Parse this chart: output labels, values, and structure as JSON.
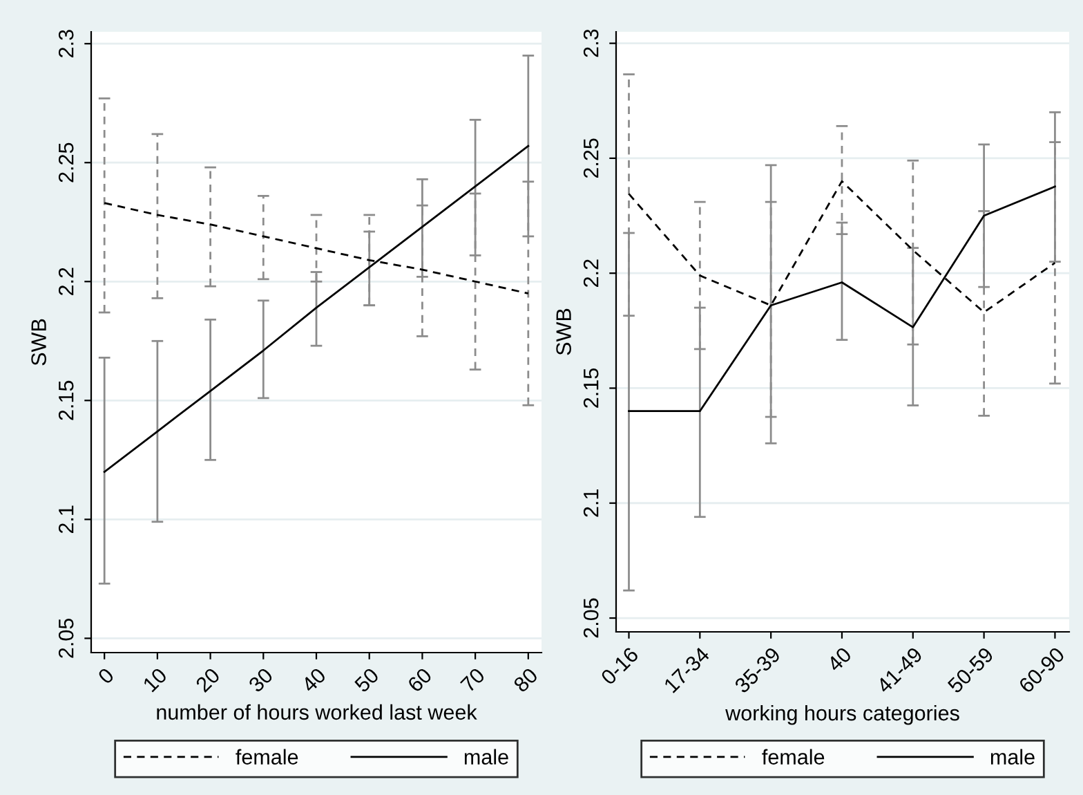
{
  "chart_data": [
    {
      "type": "line",
      "x": [
        0,
        10,
        20,
        30,
        40,
        50,
        60,
        70,
        80
      ],
      "xlabel": "number of hours worked last week",
      "ylabel": "SWB",
      "xlim": [
        -2.5,
        82.5
      ],
      "ylim": [
        2.044,
        2.305
      ],
      "xticks": [
        0,
        10,
        20,
        30,
        40,
        50,
        60,
        70,
        80
      ],
      "yticks": [
        2.05,
        2.1,
        2.15,
        2.2,
        2.25,
        2.3
      ],
      "grid": "y",
      "legend": "bottom",
      "marker": "none",
      "series": [
        {
          "name": "female",
          "color": "#000000",
          "line_style": "dashed",
          "values": [
            2.233,
            2.228,
            2.224,
            2.219,
            2.214,
            2.209,
            2.205,
            2.2,
            2.195
          ],
          "errors": [
            [
              2.187,
              2.277
            ],
            [
              2.193,
              2.262
            ],
            [
              2.198,
              2.248
            ],
            [
              2.201,
              2.236
            ],
            [
              2.2,
              2.228
            ],
            [
              2.19,
              2.228
            ],
            [
              2.177,
              2.232
            ],
            [
              2.163,
              2.237
            ],
            [
              2.148,
              2.242
            ]
          ]
        },
        {
          "name": "male",
          "color": "#000000",
          "line_style": "solid",
          "values": [
            2.12,
            2.137,
            2.154,
            2.171,
            2.189,
            2.206,
            2.223,
            2.24,
            2.257
          ],
          "errors": [
            [
              2.073,
              2.168
            ],
            [
              2.099,
              2.175
            ],
            [
              2.125,
              2.184
            ],
            [
              2.151,
              2.192
            ],
            [
              2.173,
              2.204
            ],
            [
              2.19,
              2.221
            ],
            [
              2.202,
              2.243
            ],
            [
              2.211,
              2.268
            ],
            [
              2.219,
              2.295
            ]
          ]
        }
      ]
    },
    {
      "type": "line",
      "categories": [
        "0-16",
        "17-34",
        "35-39",
        "40",
        "41-49",
        "50-59",
        "60-90"
      ],
      "xlabel": "working hours categories",
      "ylabel": "SWB",
      "ylim": [
        2.044,
        2.305
      ],
      "yticks": [
        2.05,
        2.1,
        2.15,
        2.2,
        2.25,
        2.3
      ],
      "grid": "y",
      "legend": "bottom",
      "marker": "none",
      "series": [
        {
          "name": "female",
          "color": "#000000",
          "line_style": "dashed",
          "values": [
            2.2345,
            2.199,
            2.186,
            2.24,
            2.21,
            2.183,
            2.2045
          ],
          "errors": [
            [
              2.1815,
              2.2865
            ],
            [
              2.167,
              2.231
            ],
            [
              2.1375,
              2.231
            ],
            [
              2.217,
              2.264
            ],
            [
              2.169,
              2.249
            ],
            [
              2.138,
              2.227
            ],
            [
              2.152,
              2.257
            ]
          ]
        },
        {
          "name": "male",
          "color": "#000000",
          "line_style": "solid",
          "values": [
            2.14,
            2.14,
            2.186,
            2.196,
            2.1765,
            2.225,
            2.2377
          ],
          "errors": [
            [
              2.062,
              2.2175
            ],
            [
              2.094,
              2.185
            ],
            [
              2.126,
              2.247
            ],
            [
              2.171,
              2.222
            ],
            [
              2.1425,
              2.211
            ],
            [
              2.194,
              2.256
            ],
            [
              2.205,
              2.27
            ]
          ]
        }
      ]
    }
  ]
}
